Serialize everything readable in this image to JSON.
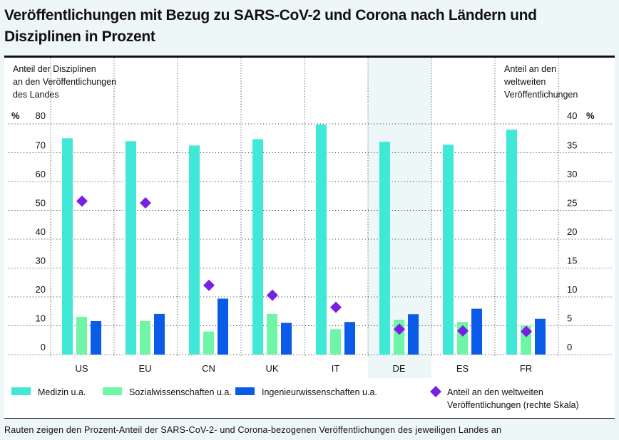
{
  "title": [
    "Veröffentlichungen mit Bezug zu SARS-CoV-2 und Corona nach Ländern und",
    "Disziplinen in Prozent"
  ],
  "footnote": "Rauten zeigen den Prozent-Anteil der SARS-CoV-2- und Corona-bezogenen Veröffentlichungen des jeweiligen Landes an",
  "colors": {
    "medizin": "#40e8d8",
    "sozial": "#6ff5a6",
    "ingenieur": "#0a5ce8",
    "diamond": "#7a1fe6",
    "highlight": "#eef7f7"
  },
  "chart_data": {
    "type": "bar",
    "title": "Veröffentlichungen mit Bezug zu SARS-CoV-2 und Corona nach Ländern und Disziplinen in Prozent",
    "categories": [
      "US",
      "EU",
      "CN",
      "UK",
      "IT",
      "DE",
      "ES",
      "FR"
    ],
    "highlighted_category": "DE",
    "left_axis": {
      "label": [
        "Anteil der Disziplinen",
        "an den Veröffentlichungen",
        "des Landes"
      ],
      "unit": "%",
      "ylim": [
        0,
        80
      ],
      "ticks": [
        "0",
        "10",
        "20",
        "30",
        "40",
        "50",
        "60",
        "70",
        "80"
      ]
    },
    "right_axis": {
      "label": [
        "Anteil an den",
        "weltweiten",
        "Veröffentlichungen"
      ],
      "unit": "%",
      "ylim": [
        0,
        40
      ],
      "ticks": [
        "0",
        "5",
        "10",
        "15",
        "20",
        "25",
        "30",
        "35",
        "40"
      ]
    },
    "grid": true,
    "series": [
      {
        "key": "medizin",
        "name": "Medizin u.a.",
        "type": "bar",
        "axis": "left",
        "values": [
          75.0,
          74.0,
          72.5,
          74.7,
          79.8,
          73.8,
          72.8,
          78.0
        ]
      },
      {
        "key": "sozial",
        "name": "Sozialwissenschaften u.a.",
        "type": "bar",
        "axis": "left",
        "values": [
          13.1,
          11.6,
          8.0,
          14.1,
          8.8,
          12.1,
          11.3,
          9.9
        ]
      },
      {
        "key": "ingenieur",
        "name": "Ingenieurwissenschaften u.a.",
        "type": "bar",
        "axis": "left",
        "values": [
          11.6,
          14.1,
          19.4,
          11.0,
          11.3,
          14.0,
          15.9,
          12.4
        ]
      },
      {
        "key": "diamond",
        "name": "Anteil an den weltweiten Veröffentlichungen (rechte Skala)",
        "type": "scatter",
        "marker": "diamond",
        "axis": "right",
        "values": [
          26.6,
          26.3,
          12.0,
          10.3,
          8.2,
          4.4,
          4.1,
          4.0
        ]
      }
    ],
    "legend": {
      "placement": "bottom",
      "items": [
        {
          "key": "medizin",
          "label": [
            "Medizin u.a."
          ]
        },
        {
          "key": "sozial",
          "label": [
            "Sozialwissenschaften u.a."
          ]
        },
        {
          "key": "ingenieur",
          "label": [
            "Ingenieurwissenschaften u.a."
          ]
        },
        {
          "key": "diamond",
          "label": [
            "Anteil an den weltweiten",
            "Veröffentlichungen (rechte Skala)"
          ]
        }
      ]
    }
  }
}
